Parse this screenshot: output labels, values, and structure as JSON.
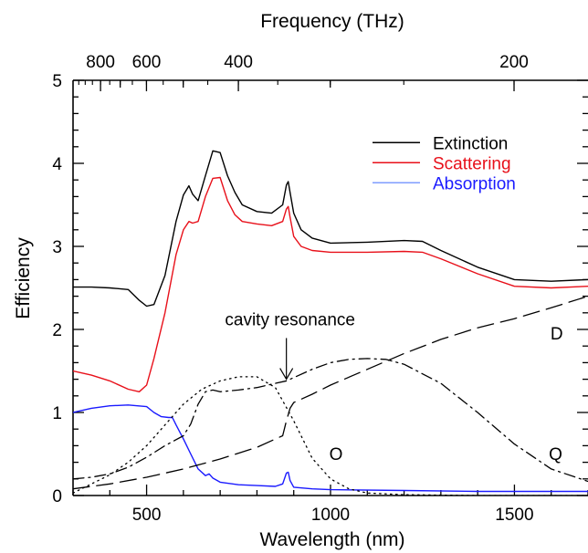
{
  "chart_data": {
    "type": "line",
    "xlabel": "Wavelength (nm)",
    "ylabel": "Efficiency",
    "top_axis_label": "Frequency (THz)",
    "xlim": [
      300,
      1700
    ],
    "ylim": [
      0,
      5
    ],
    "x_ticks": [
      500,
      1000,
      1500
    ],
    "y_ticks": [
      0,
      1,
      2,
      3,
      4,
      5
    ],
    "top_ticks": [
      {
        "label": "800",
        "thz": 800
      },
      {
        "label": "600",
        "thz": 600
      },
      {
        "label": "400",
        "thz": 400
      },
      {
        "label": "200",
        "thz": 200
      }
    ],
    "top_minor_thz": [
      700,
      500,
      300
    ],
    "legend_position": "top-right",
    "grid": false,
    "legend": [
      {
        "label": "Extinction",
        "color": "#000000",
        "text_color": "#000000"
      },
      {
        "label": "Scattering",
        "color": "#e8101a",
        "text_color": "#e8101a"
      },
      {
        "label": "Absorption",
        "color": "#7f9cff",
        "text_color": "#1a1aff"
      }
    ],
    "series": [
      {
        "name": "Extinction",
        "color": "#000000",
        "dash": "solid",
        "x": [
          300,
          350,
          400,
          450,
          480,
          500,
          520,
          550,
          580,
          600,
          615,
          625,
          640,
          660,
          680,
          700,
          720,
          740,
          760,
          800,
          840,
          870,
          880,
          885,
          890,
          900,
          920,
          950,
          1000,
          1100,
          1200,
          1250,
          1300,
          1400,
          1500,
          1600,
          1700
        ],
        "y": [
          2.51,
          2.51,
          2.5,
          2.48,
          2.35,
          2.28,
          2.3,
          2.65,
          3.3,
          3.62,
          3.73,
          3.63,
          3.55,
          3.85,
          4.15,
          4.13,
          3.85,
          3.65,
          3.5,
          3.42,
          3.4,
          3.5,
          3.74,
          3.78,
          3.65,
          3.4,
          3.2,
          3.1,
          3.04,
          3.05,
          3.07,
          3.06,
          2.95,
          2.75,
          2.6,
          2.58,
          2.6
        ]
      },
      {
        "name": "Scattering",
        "color": "#e8101a",
        "dash": "solid",
        "x": [
          300,
          350,
          400,
          450,
          480,
          500,
          520,
          550,
          580,
          600,
          615,
          625,
          640,
          660,
          680,
          700,
          720,
          740,
          760,
          800,
          840,
          870,
          880,
          885,
          890,
          900,
          920,
          950,
          1000,
          1100,
          1200,
          1250,
          1300,
          1400,
          1500,
          1600,
          1700
        ],
        "y": [
          1.5,
          1.45,
          1.38,
          1.28,
          1.25,
          1.33,
          1.65,
          2.2,
          2.9,
          3.2,
          3.3,
          3.28,
          3.3,
          3.6,
          3.82,
          3.83,
          3.55,
          3.38,
          3.3,
          3.27,
          3.25,
          3.3,
          3.45,
          3.48,
          3.35,
          3.12,
          3.0,
          2.95,
          2.93,
          2.93,
          2.94,
          2.93,
          2.85,
          2.67,
          2.52,
          2.5,
          2.52
        ]
      },
      {
        "name": "Absorption",
        "color": "#1a1aff",
        "dash": "solid",
        "x": [
          300,
          350,
          400,
          450,
          500,
          520,
          540,
          560,
          570,
          580,
          600,
          620,
          640,
          660,
          670,
          680,
          700,
          750,
          800,
          850,
          870,
          880,
          885,
          890,
          900,
          950,
          1000,
          1200,
          1400,
          1700
        ],
        "y": [
          1.0,
          1.05,
          1.08,
          1.09,
          1.07,
          1.0,
          0.95,
          0.94,
          0.94,
          0.85,
          0.68,
          0.5,
          0.32,
          0.24,
          0.26,
          0.21,
          0.16,
          0.13,
          0.12,
          0.11,
          0.14,
          0.27,
          0.28,
          0.18,
          0.1,
          0.08,
          0.07,
          0.06,
          0.05,
          0.05
        ]
      },
      {
        "name": "D",
        "color": "#000000",
        "dash": "dashed",
        "x": [
          300,
          400,
          500,
          600,
          700,
          800,
          870,
          880,
          890,
          900,
          950,
          1000,
          1100,
          1200,
          1300,
          1400,
          1500,
          1600,
          1700
        ],
        "y": [
          0.08,
          0.14,
          0.22,
          0.32,
          0.44,
          0.58,
          0.72,
          0.9,
          1.05,
          1.12,
          1.22,
          1.33,
          1.52,
          1.71,
          1.88,
          2.02,
          2.13,
          2.26,
          2.4
        ]
      },
      {
        "name": "Q",
        "color": "#000000",
        "dash": "dashdot",
        "x": [
          300,
          350,
          400,
          450,
          500,
          550,
          600,
          620,
          640,
          660,
          680,
          700,
          750,
          800,
          850,
          880,
          900,
          950,
          1000,
          1050,
          1100,
          1150,
          1200,
          1300,
          1400,
          1500,
          1600,
          1700
        ],
        "y": [
          0.2,
          0.22,
          0.26,
          0.34,
          0.46,
          0.6,
          0.72,
          0.86,
          1.1,
          1.25,
          1.27,
          1.25,
          1.27,
          1.3,
          1.35,
          1.38,
          1.42,
          1.52,
          1.6,
          1.64,
          1.65,
          1.64,
          1.58,
          1.35,
          1.0,
          0.62,
          0.32,
          0.17
        ]
      },
      {
        "name": "O",
        "color": "#000000",
        "dash": "dotted",
        "x": [
          300,
          400,
          450,
          500,
          550,
          600,
          650,
          700,
          750,
          800,
          850,
          900,
          950,
          1000,
          1050,
          1100,
          1200,
          1400,
          1700
        ],
        "y": [
          0.03,
          0.25,
          0.4,
          0.6,
          0.85,
          1.1,
          1.28,
          1.38,
          1.43,
          1.43,
          1.3,
          0.9,
          0.45,
          0.2,
          0.08,
          0.03,
          0.01,
          0.0,
          0.0
        ]
      }
    ],
    "annotations": [
      {
        "text": "cavity resonance",
        "x": 890,
        "y": 2.05,
        "arrow_to_y": 1.4
      },
      {
        "text": "D",
        "x": 1615,
        "y": 1.88
      },
      {
        "text": "O",
        "x": 1015,
        "y": 0.43
      },
      {
        "text": "Q",
        "x": 1612,
        "y": 0.43
      }
    ]
  }
}
